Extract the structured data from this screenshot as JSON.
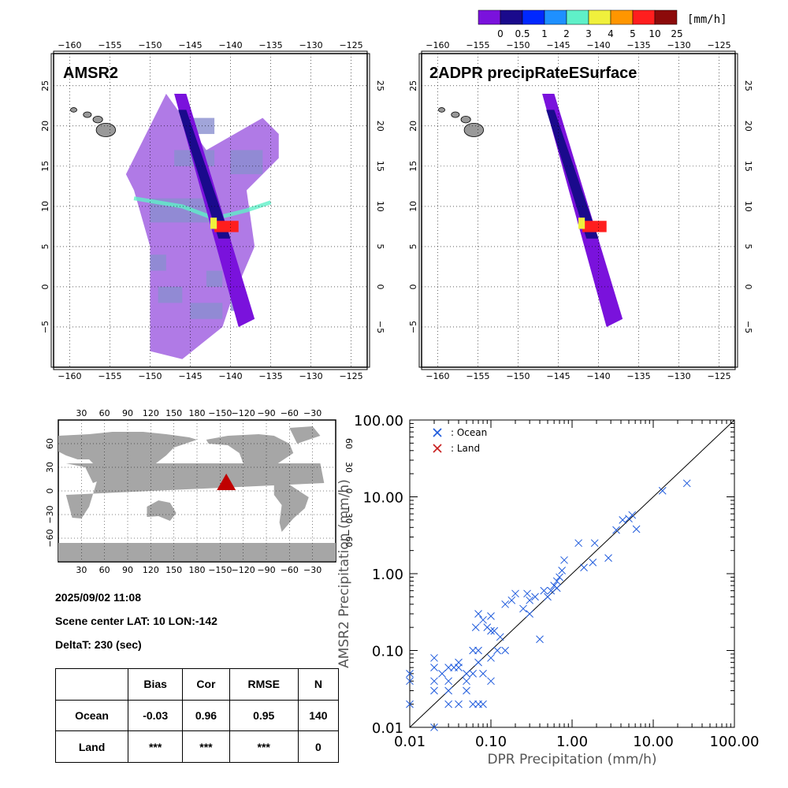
{
  "colorbar": {
    "unit": "[mm/h]",
    "labels": [
      "0",
      "0.5",
      "1",
      "2",
      "3",
      "4",
      "5",
      "10",
      "25"
    ],
    "colors": [
      "#7a12dc",
      "#1a0a8c",
      "#0028ff",
      "#1e90ff",
      "#5ff0c8",
      "#f0f03c",
      "#ff9600",
      "#ff1e1e",
      "#8c0a0a"
    ]
  },
  "panels": {
    "amsr2": {
      "title": "AMSR2"
    },
    "dpr": {
      "title": "2ADPR precipRateESurface"
    }
  },
  "map_axes": {
    "lon_ticks": [
      -160,
      -155,
      -150,
      -145,
      -140,
      -135,
      -130,
      -125
    ],
    "lat_ticks": [
      25,
      20,
      15,
      10,
      5,
      0,
      -5
    ],
    "lon_range": [
      -162,
      -123
    ],
    "lat_range": [
      -10,
      29
    ]
  },
  "globe": {
    "top_ticks": [
      "30",
      "60",
      "90",
      "120",
      "150",
      "180",
      "-150",
      "-120",
      "-90",
      "-60",
      "-30"
    ],
    "lat_ticks": [
      "60",
      "30",
      "0",
      "-30",
      "-60"
    ],
    "marker": {
      "lon": -142,
      "lat": 10,
      "color": "#c00000"
    }
  },
  "info": {
    "datetime": "2025/09/02 11:08",
    "scene_center": "Scene center LAT: 10   LON:-142",
    "delta_t": "DeltaT:  230 (sec)"
  },
  "stats": {
    "headers": [
      "",
      "Bias",
      "Cor",
      "RMSE",
      "N"
    ],
    "rows": [
      [
        "Ocean",
        "-0.03",
        "0.96",
        "0.95",
        "140"
      ],
      [
        "Land",
        "***",
        "***",
        "***",
        "0"
      ]
    ]
  },
  "chart_data": {
    "type": "scatter",
    "xlabel": "DPR Precipitation (mm/h)",
    "ylabel": "AMSR2 Precipitation (mm/h)",
    "xscale": "log",
    "yscale": "log",
    "xlim": [
      0.01,
      100
    ],
    "ylim": [
      0.01,
      100
    ],
    "x_ticks": [
      "0.01",
      "0.10",
      "1.00",
      "10.00",
      "100.00"
    ],
    "y_ticks": [
      "0.01",
      "0.10",
      "1.00",
      "10.00",
      "100.00"
    ],
    "legend": [
      {
        "name": ": Ocean",
        "color": "#1e5adc"
      },
      {
        "name": ": Land",
        "color": "#c81e1e"
      }
    ],
    "legend_position": "top-left",
    "series": [
      {
        "name": ": Ocean",
        "color": "#1e5adc",
        "points": [
          [
            0.01,
            0.05
          ],
          [
            0.01,
            0.04
          ],
          [
            0.01,
            0.02
          ],
          [
            0.02,
            0.08
          ],
          [
            0.02,
            0.06
          ],
          [
            0.02,
            0.04
          ],
          [
            0.02,
            0.03
          ],
          [
            0.02,
            0.01
          ],
          [
            0.025,
            0.05
          ],
          [
            0.03,
            0.06
          ],
          [
            0.03,
            0.04
          ],
          [
            0.03,
            0.03
          ],
          [
            0.03,
            0.02
          ],
          [
            0.035,
            0.06
          ],
          [
            0.04,
            0.07
          ],
          [
            0.04,
            0.06
          ],
          [
            0.04,
            0.02
          ],
          [
            0.05,
            0.05
          ],
          [
            0.05,
            0.04
          ],
          [
            0.05,
            0.03
          ],
          [
            0.06,
            0.1
          ],
          [
            0.06,
            0.05
          ],
          [
            0.06,
            0.02
          ],
          [
            0.065,
            0.2
          ],
          [
            0.07,
            0.3
          ],
          [
            0.07,
            0.1
          ],
          [
            0.07,
            0.07
          ],
          [
            0.07,
            0.02
          ],
          [
            0.08,
            0.25
          ],
          [
            0.08,
            0.05
          ],
          [
            0.08,
            0.02
          ],
          [
            0.09,
            0.2
          ],
          [
            0.1,
            0.28
          ],
          [
            0.1,
            0.18
          ],
          [
            0.1,
            0.08
          ],
          [
            0.1,
            0.04
          ],
          [
            0.11,
            0.18
          ],
          [
            0.12,
            0.1
          ],
          [
            0.13,
            0.15
          ],
          [
            0.15,
            0.1
          ],
          [
            0.15,
            0.4
          ],
          [
            0.18,
            0.45
          ],
          [
            0.2,
            0.55
          ],
          [
            0.25,
            0.35
          ],
          [
            0.28,
            0.55
          ],
          [
            0.3,
            0.45
          ],
          [
            0.3,
            0.3
          ],
          [
            0.35,
            0.5
          ],
          [
            0.4,
            0.14
          ],
          [
            0.45,
            0.6
          ],
          [
            0.5,
            0.5
          ],
          [
            0.55,
            0.6
          ],
          [
            0.6,
            0.7
          ],
          [
            0.65,
            0.8
          ],
          [
            0.65,
            0.65
          ],
          [
            0.7,
            0.9
          ],
          [
            0.75,
            1.1
          ],
          [
            0.8,
            1.5
          ],
          [
            1.2,
            2.5
          ],
          [
            1.4,
            1.2
          ],
          [
            1.8,
            1.4
          ],
          [
            1.9,
            2.5
          ],
          [
            2.8,
            1.6
          ],
          [
            3.5,
            3.7
          ],
          [
            4.2,
            5.0
          ],
          [
            5.0,
            5.2
          ],
          [
            5.5,
            5.8
          ],
          [
            6.2,
            3.8
          ],
          [
            13.0,
            12.0
          ],
          [
            26.0,
            15.0
          ]
        ]
      },
      {
        "name": ": Land",
        "color": "#c81e1e",
        "points": []
      }
    ]
  }
}
